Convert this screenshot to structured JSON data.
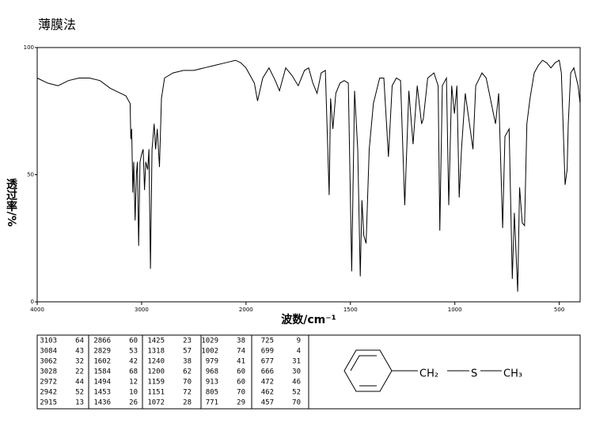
{
  "chart_data": {
    "type": "line",
    "title": "薄膜法",
    "y_label": "透过率/%",
    "x_label": "波数/cm⁻¹",
    "color": "#000000",
    "xlim": [
      4000,
      400
    ],
    "xbreak": 2000,
    "xticks": [
      4000,
      3000,
      2000,
      1500,
      1000,
      500
    ],
    "ylim": [
      0,
      100
    ],
    "yticks": [
      0,
      50,
      100
    ],
    "x": [
      4000,
      3900,
      3800,
      3700,
      3600,
      3500,
      3400,
      3300,
      3200,
      3150,
      3110,
      3103,
      3095,
      3084,
      3075,
      3062,
      3050,
      3040,
      3028,
      3015,
      3000,
      2985,
      2972,
      2960,
      2942,
      2930,
      2915,
      2900,
      2880,
      2866,
      2850,
      2829,
      2810,
      2780,
      2700,
      2600,
      2500,
      2400,
      2300,
      2200,
      2100,
      2050,
      2000,
      1960,
      1945,
      1920,
      1890,
      1860,
      1840,
      1810,
      1780,
      1750,
      1720,
      1700,
      1680,
      1660,
      1640,
      1620,
      1602,
      1595,
      1584,
      1570,
      1550,
      1530,
      1510,
      1494,
      1480,
      1465,
      1453,
      1445,
      1436,
      1425,
      1410,
      1390,
      1360,
      1340,
      1318,
      1300,
      1280,
      1260,
      1240,
      1220,
      1200,
      1180,
      1159,
      1151,
      1130,
      1100,
      1080,
      1072,
      1060,
      1040,
      1029,
      1015,
      1002,
      990,
      979,
      968,
      950,
      913,
      900,
      870,
      850,
      805,
      790,
      771,
      760,
      740,
      725,
      715,
      699,
      690,
      677,
      666,
      655,
      640,
      620,
      600,
      580,
      560,
      540,
      520,
      500,
      490,
      472,
      462,
      457,
      445,
      430,
      410,
      400
    ],
    "values": [
      88,
      86,
      85,
      87,
      88,
      88,
      87,
      84,
      82,
      81,
      78,
      64,
      68,
      43,
      55,
      32,
      50,
      55,
      22,
      55,
      58,
      60,
      44,
      55,
      52,
      60,
      13,
      60,
      70,
      60,
      68,
      53,
      80,
      88,
      90,
      91,
      91,
      92,
      93,
      94,
      95,
      94,
      92,
      86,
      79,
      88,
      92,
      87,
      83,
      92,
      89,
      85,
      91,
      92,
      86,
      82,
      90,
      91,
      42,
      80,
      68,
      82,
      86,
      87,
      86,
      12,
      83,
      60,
      10,
      40,
      26,
      23,
      60,
      78,
      88,
      88,
      57,
      85,
      88,
      87,
      38,
      83,
      62,
      85,
      70,
      72,
      88,
      90,
      85,
      28,
      85,
      88,
      38,
      85,
      74,
      85,
      41,
      60,
      82,
      60,
      85,
      90,
      88,
      70,
      82,
      29,
      65,
      68,
      9,
      35,
      4,
      45,
      31,
      30,
      70,
      80,
      90,
      93,
      95,
      94,
      92,
      94,
      95,
      90,
      46,
      52,
      70,
      90,
      92,
      85,
      78
    ]
  },
  "peak_table": {
    "rows": [
      [
        3103,
        64
      ],
      [
        3084,
        43
      ],
      [
        3062,
        32
      ],
      [
        3028,
        22
      ],
      [
        2972,
        44
      ],
      [
        2942,
        52
      ],
      [
        2915,
        13
      ],
      [
        2866,
        60
      ],
      [
        2829,
        53
      ],
      [
        1602,
        42
      ],
      [
        1584,
        68
      ],
      [
        1494,
        12
      ],
      [
        1453,
        10
      ],
      [
        1436,
        26
      ],
      [
        1425,
        23
      ],
      [
        1318,
        57
      ],
      [
        1240,
        38
      ],
      [
        1200,
        62
      ],
      [
        1159,
        70
      ],
      [
        1151,
        72
      ],
      [
        1072,
        28
      ],
      [
        1029,
        38
      ],
      [
        1002,
        74
      ],
      [
        979,
        41
      ],
      [
        968,
        60
      ],
      [
        913,
        60
      ],
      [
        805,
        70
      ],
      [
        771,
        29
      ],
      [
        725,
        9
      ],
      [
        699,
        4
      ],
      [
        677,
        31
      ],
      [
        666,
        30
      ],
      [
        472,
        46
      ],
      [
        462,
        52
      ],
      [
        457,
        70
      ]
    ]
  },
  "structure": {
    "groups": [
      "CH₂",
      "S",
      "CH₃"
    ]
  }
}
